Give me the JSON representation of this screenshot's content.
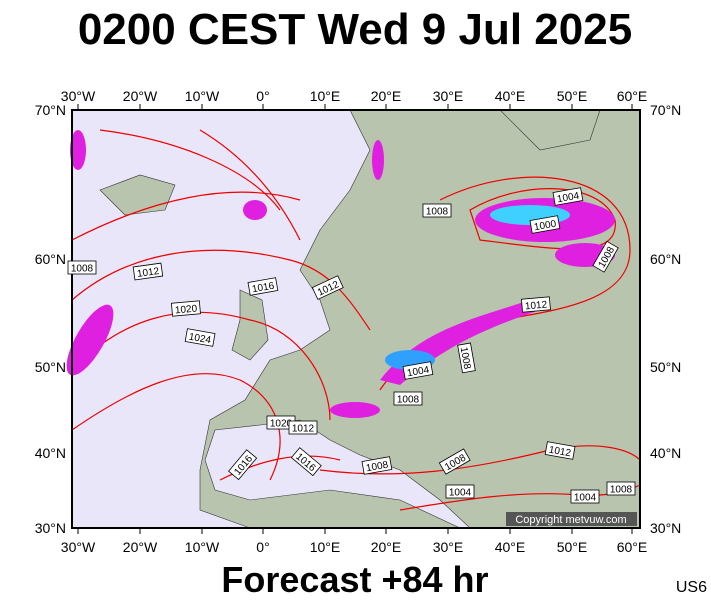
{
  "title": "0200 CEST Wed 9 Jul 2025",
  "footer": "Forecast +84 hr",
  "code": "US6",
  "copyright": "Copyright metvuw.com",
  "map": {
    "lon_labels": [
      "30°W",
      "20°W",
      "10°W",
      "0°",
      "10°E",
      "20°E",
      "30°E",
      "40°E",
      "50°E",
      "60°E"
    ],
    "lat_labels": [
      "70°N",
      "60°N",
      "50°N",
      "40°N",
      "30°N"
    ],
    "isobar_labels": [
      "1004",
      "1000",
      "1008",
      "1008",
      "1008",
      "1012",
      "1016",
      "1012",
      "1020",
      "1024",
      "1012",
      "1008",
      "1004",
      "1008",
      "1020",
      "1012",
      "1016",
      "1016",
      "1008",
      "1008",
      "1012",
      "1004",
      "1004",
      "1008"
    ]
  }
}
